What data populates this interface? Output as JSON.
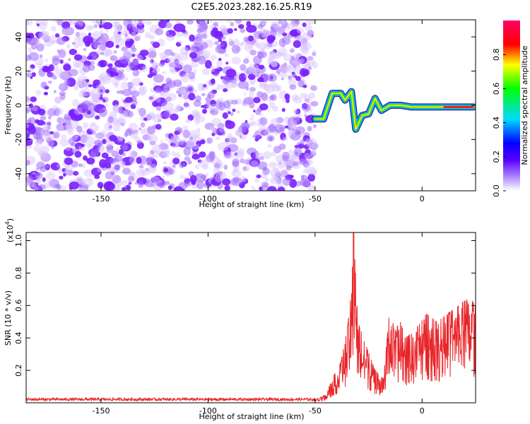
{
  "title": "C2E5.2023.282.16.25.R19",
  "spectrogram": {
    "xlabel": "Height of straight line (km)",
    "ylabel": "Frequency (Hz)",
    "xlim": [
      -185,
      25
    ],
    "ylim": [
      -50,
      50
    ],
    "xticks": [
      -150,
      -100,
      -50,
      0
    ],
    "yticks": [
      -40,
      -20,
      0,
      20,
      40
    ],
    "noise_color": "#7a1fff",
    "colorbar": {
      "label": "Normalized spectral amplitude",
      "ticks": [
        0.0,
        0.2,
        0.4,
        0.6,
        0.8
      ],
      "range": [
        0,
        1
      ]
    },
    "signal_track": [
      {
        "x": -50,
        "y": -8
      },
      {
        "x": -46,
        "y": -8
      },
      {
        "x": -42,
        "y": 7
      },
      {
        "x": -38,
        "y": 7
      },
      {
        "x": -36,
        "y": 3
      },
      {
        "x": -33,
        "y": 8
      },
      {
        "x": -31,
        "y": -14
      },
      {
        "x": -28,
        "y": -6
      },
      {
        "x": -25,
        "y": -5
      },
      {
        "x": -22,
        "y": 4
      },
      {
        "x": -19,
        "y": -3
      },
      {
        "x": -15,
        "y": 0
      },
      {
        "x": -10,
        "y": 0
      },
      {
        "x": -5,
        "y": -1
      },
      {
        "x": 0,
        "y": -1
      },
      {
        "x": 5,
        "y": -1
      },
      {
        "x": 10,
        "y": -1
      },
      {
        "x": 15,
        "y": -1
      },
      {
        "x": 20,
        "y": -1
      },
      {
        "x": 24,
        "y": -1
      }
    ]
  },
  "chart_data": {
    "type": "line",
    "xlabel": "Height of straight line (km)",
    "ylabel": "SNR (10 * v/v)",
    "yscale_label": "(x10",
    "yscale_exp": "4",
    "yscale_suffix": ")",
    "xlim": [
      -185,
      25
    ],
    "ylim": [
      0,
      1.05
    ],
    "xticks": [
      -150,
      -100,
      -50,
      0
    ],
    "yticks": [
      0.2,
      0.4,
      0.6,
      0.8,
      1.0
    ],
    "line_color": "#e8262a",
    "envelope": [
      {
        "x": -185,
        "y": 0.02
      },
      {
        "x": -50,
        "y": 0.02
      },
      {
        "x": -45,
        "y": 0.05
      },
      {
        "x": -42,
        "y": 0.15
      },
      {
        "x": -38,
        "y": 0.25
      },
      {
        "x": -35,
        "y": 0.45
      },
      {
        "x": -33,
        "y": 0.7
      },
      {
        "x": -32,
        "y": 1.05
      },
      {
        "x": -30,
        "y": 0.5
      },
      {
        "x": -26,
        "y": 0.35
      },
      {
        "x": -22,
        "y": 0.2
      },
      {
        "x": -18,
        "y": 0.15
      },
      {
        "x": -15,
        "y": 0.6
      },
      {
        "x": -13,
        "y": 0.45
      },
      {
        "x": -10,
        "y": 0.5
      },
      {
        "x": -8,
        "y": 0.4
      },
      {
        "x": -3,
        "y": 0.45
      },
      {
        "x": 2,
        "y": 0.55
      },
      {
        "x": 7,
        "y": 0.5
      },
      {
        "x": 12,
        "y": 0.55
      },
      {
        "x": 17,
        "y": 0.6
      },
      {
        "x": 22,
        "y": 0.65
      },
      {
        "x": 25,
        "y": 0.6
      }
    ]
  }
}
